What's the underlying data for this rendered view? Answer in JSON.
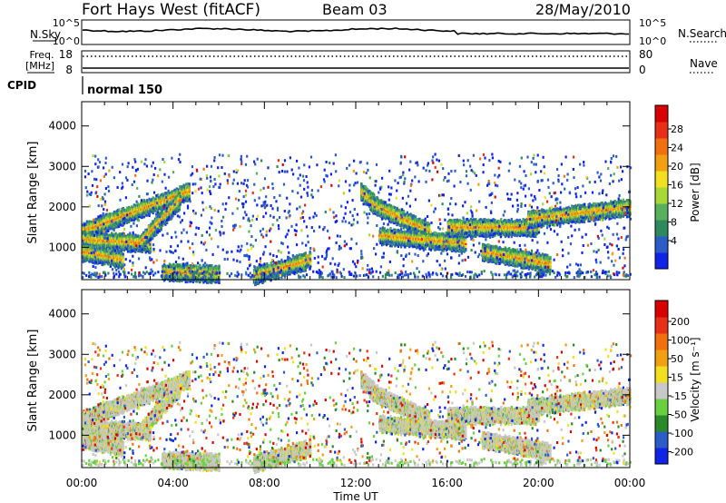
{
  "header": {
    "station": "Fort Hays West (fitACF)",
    "beam": "Beam 03",
    "date": "28/May/2010"
  },
  "panels": {
    "noise": {
      "left_label": "N.Sky",
      "left_ticks": [
        "10^5",
        "10^0"
      ],
      "right_ticks": [
        "10^5",
        "10^0"
      ],
      "right_label": "N.Search"
    },
    "freq": {
      "left_label_1": "Freq.",
      "left_label_2": "[MHz]",
      "left_ticks": [
        "18",
        "8"
      ],
      "right_ticks": [
        "80",
        "0"
      ],
      "right_label": "Nave"
    },
    "cpid": {
      "label": "CPID",
      "value": "normal 150"
    }
  },
  "colors": {
    "power_scale": [
      "#1024e8",
      "#2c5cc8",
      "#2e8a5e",
      "#58b05c",
      "#a8d838",
      "#f0e020",
      "#f0a010",
      "#f07010",
      "#e83018",
      "#d80000"
    ],
    "velocity_scale": [
      "#1024e8",
      "#2c5cc8",
      "#2a8a2a",
      "#6ad040",
      "#c8c8c8",
      "#f0e020",
      "#f0a010",
      "#f07010",
      "#e83018",
      "#d80000"
    ]
  },
  "chart_data": [
    {
      "type": "heatmap",
      "title": "Power",
      "ylabel": "Slant Range [km]",
      "xlabel": "Time UT",
      "x_ticks": [
        "00:00",
        "04:00",
        "08:00",
        "12:00",
        "16:00",
        "20:00",
        "00:00"
      ],
      "x_range_hours": [
        0,
        24
      ],
      "y_ticks": [
        1000,
        2000,
        3000,
        4000
      ],
      "ylim": [
        200,
        4600
      ],
      "colorbar": {
        "label": "Power [dB]",
        "ticks": [
          "28",
          "24",
          "20",
          "16",
          "12",
          "8",
          "4"
        ],
        "range": [
          0,
          30
        ]
      },
      "echo_bands": [
        {
          "t_start": 0.0,
          "t_end": 4.7,
          "r_start": 1400,
          "r_end": 2400
        },
        {
          "t_start": 0.0,
          "t_end": 3.0,
          "r_start": 1200,
          "r_end": 1100
        },
        {
          "t_start": 0.0,
          "t_end": 1.8,
          "r_start": 900,
          "r_end": 700
        },
        {
          "t_start": 2.5,
          "t_end": 4.3,
          "r_start": 1100,
          "r_end": 2200
        },
        {
          "t_start": 3.5,
          "t_end": 6.0,
          "r_start": 400,
          "r_end": 350
        },
        {
          "t_start": 7.5,
          "t_end": 10.0,
          "r_start": 300,
          "r_end": 700
        },
        {
          "t_start": 12.2,
          "t_end": 13.0,
          "r_start": 2400,
          "r_end": 2000
        },
        {
          "t_start": 12.6,
          "t_end": 15.2,
          "r_start": 2100,
          "r_end": 1400
        },
        {
          "t_start": 13.0,
          "t_end": 16.8,
          "r_start": 1300,
          "r_end": 1100
        },
        {
          "t_start": 16.0,
          "t_end": 20.0,
          "r_start": 1500,
          "r_end": 1500
        },
        {
          "t_start": 17.5,
          "t_end": 20.5,
          "r_start": 900,
          "r_end": 600
        },
        {
          "t_start": 19.5,
          "t_end": 24.0,
          "r_start": 1700,
          "r_end": 2000
        }
      ]
    },
    {
      "type": "heatmap",
      "title": "Velocity",
      "ylabel": "Slant Range [km]",
      "xlabel": "Time UT",
      "x_ticks": [
        "00:00",
        "04:00",
        "08:00",
        "12:00",
        "16:00",
        "20:00",
        "00:00"
      ],
      "x_range_hours": [
        0,
        24
      ],
      "y_ticks": [
        1000,
        2000,
        3000,
        4000
      ],
      "ylim": [
        200,
        4600
      ],
      "colorbar": {
        "label": "Velocity [m s⁻¹]",
        "ticks": [
          "200",
          "100",
          "50",
          "15",
          "-15",
          "-50",
          "-100",
          "-200"
        ],
        "range": [
          -250,
          250
        ]
      }
    }
  ],
  "footer": {
    "xlabel": "Time UT"
  }
}
